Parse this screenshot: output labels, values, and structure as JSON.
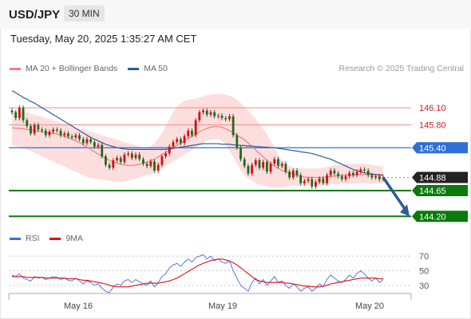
{
  "header": {
    "symbol": "USD/JPY",
    "timeframe": "30 MIN",
    "datetime": "Tuesday, May 20, 2025 1:35:27 AM CET"
  },
  "legend": {
    "items": [
      {
        "label": "MA 20 + Bollinger Bands",
        "color": "#f08080"
      },
      {
        "label": "MA 50",
        "color": "#2d5a9a"
      }
    ],
    "copyright": "Research © 2025 Trading Central"
  },
  "rsi_legend": {
    "items": [
      {
        "label": "RSI",
        "color": "#4169e1"
      },
      {
        "label": "9MA",
        "color": "#dd1111"
      }
    ]
  },
  "chart_data": [
    {
      "type": "line",
      "title": "",
      "x_tick_labels": [
        "May 16",
        "May 19",
        "May 20"
      ],
      "ylim": [
        144.05,
        146.45
      ],
      "levels": [
        {
          "value": 146.1,
          "label": "146.10",
          "style": "resistance-thin",
          "color": "#cc2222"
        },
        {
          "value": 145.8,
          "label": "145.80",
          "style": "resistance-thin",
          "color": "#cc2222"
        },
        {
          "value": 145.4,
          "label": "145.40",
          "style": "pivot",
          "color": "#2f6fd6"
        },
        {
          "value": 144.88,
          "label": "144.88",
          "style": "last-price",
          "color": "#222222"
        },
        {
          "value": 144.65,
          "label": "144.65",
          "style": "support",
          "color": "#0a7a0a"
        },
        {
          "value": 144.2,
          "label": "144.20",
          "style": "support",
          "color": "#0a7a0a"
        }
      ],
      "arrow": {
        "from": 144.88,
        "to": 144.2,
        "color": "#2d5a9a"
      },
      "series": [
        {
          "name": "Price",
          "values": [
            146.02,
            145.92,
            146.1,
            145.88,
            145.78,
            145.65,
            145.8,
            145.72,
            145.7,
            145.62,
            145.68,
            145.72,
            145.7,
            145.62,
            145.65,
            145.6,
            145.58,
            145.62,
            145.55,
            145.48,
            145.55,
            145.5,
            145.42,
            145.45,
            145.25,
            145.1,
            145.05,
            145.18,
            145.22,
            145.15,
            145.28,
            145.3,
            145.22,
            145.28,
            145.2,
            145.12,
            145.08,
            145.16,
            145.0,
            145.1,
            145.25,
            145.3,
            145.42,
            145.5,
            145.55,
            145.48,
            145.6,
            145.7,
            145.62,
            145.88,
            146.02,
            146.05,
            145.98,
            146.02,
            145.95,
            145.96,
            145.92,
            145.9,
            145.95,
            145.62,
            145.4,
            145.2,
            145.08,
            144.95,
            145.1,
            145.18,
            145.05,
            145.15,
            144.98,
            145.12,
            145.2,
            145.08,
            145.12,
            144.98,
            144.88,
            145.0,
            144.92,
            144.78,
            144.82,
            144.85,
            144.72,
            144.8,
            144.86,
            144.78,
            144.92,
            145.0,
            144.95,
            144.9,
            144.85,
            144.9,
            144.96,
            144.92,
            144.98,
            145.02,
            145.0,
            144.92,
            144.88,
            144.9,
            144.85,
            144.88
          ]
        },
        {
          "name": "MA 50",
          "values": [
            146.4,
            146.36,
            146.32,
            146.28,
            146.25,
            146.21,
            146.18,
            146.14,
            146.1,
            146.06,
            146.02,
            145.98,
            145.94,
            145.9,
            145.86,
            145.82,
            145.78,
            145.74,
            145.7,
            145.66,
            145.62,
            145.58,
            145.55,
            145.52,
            145.49,
            145.46,
            145.44,
            145.42,
            145.4,
            145.39,
            145.38,
            145.37,
            145.37,
            145.37,
            145.37,
            145.37,
            145.37,
            145.37,
            145.37,
            145.37,
            145.37,
            145.37,
            145.38,
            145.39,
            145.4,
            145.41,
            145.42,
            145.43,
            145.44,
            145.45,
            145.46,
            145.47,
            145.47,
            145.47,
            145.47,
            145.47,
            145.46,
            145.46,
            145.46,
            145.45,
            145.45,
            145.44,
            145.44,
            145.43,
            145.43,
            145.42,
            145.42,
            145.41,
            145.41,
            145.4,
            145.4,
            145.39,
            145.38,
            145.37,
            145.36,
            145.35,
            145.34,
            145.33,
            145.32,
            145.31,
            145.3,
            145.28,
            145.26,
            145.24,
            145.22,
            145.2,
            145.17,
            145.14,
            145.11,
            145.08,
            145.05,
            145.02,
            145.0,
            144.98,
            144.96,
            144.95,
            144.94,
            144.93,
            144.92,
            144.92
          ]
        },
        {
          "name": "MA 20",
          "values": [
            145.75,
            145.74,
            145.74,
            145.73,
            145.72,
            145.71,
            145.7,
            145.69,
            145.68,
            145.67,
            145.66,
            145.65,
            145.64,
            145.62,
            145.6,
            145.58,
            145.55,
            145.52,
            145.49,
            145.45,
            145.41,
            145.37,
            145.33,
            145.29,
            145.25,
            145.22,
            145.18,
            145.15,
            145.13,
            145.11,
            145.1,
            145.09,
            145.09,
            145.1,
            145.11,
            145.13,
            145.15,
            145.17,
            145.2,
            145.24,
            145.28,
            145.32,
            145.36,
            145.4,
            145.44,
            145.48,
            145.52,
            145.56,
            145.6,
            145.64,
            145.68,
            145.71,
            145.74,
            145.76,
            145.77,
            145.77,
            145.76,
            145.73,
            145.7,
            145.66,
            145.62,
            145.58,
            145.54,
            145.48,
            145.42,
            145.36,
            145.3,
            145.24,
            145.18,
            145.12,
            145.08,
            145.04,
            145.0,
            144.98,
            144.96,
            144.94,
            144.92,
            144.9,
            144.89,
            144.88,
            144.88,
            144.88,
            144.88,
            144.88,
            144.89,
            144.9,
            144.9,
            144.91,
            144.91,
            144.92,
            144.92,
            144.92,
            144.93,
            144.93,
            144.93,
            144.93,
            144.93,
            144.93,
            144.93,
            144.93
          ]
        },
        {
          "name": "Bollinger Upper",
          "values": [
            146.05,
            146.05,
            146.04,
            146.03,
            146.02,
            146.0,
            145.98,
            145.96,
            145.94,
            145.92,
            145.9,
            145.88,
            145.86,
            145.84,
            145.82,
            145.8,
            145.78,
            145.76,
            145.74,
            145.72,
            145.7,
            145.68,
            145.66,
            145.64,
            145.62,
            145.6,
            145.58,
            145.56,
            145.54,
            145.52,
            145.5,
            145.48,
            145.46,
            145.44,
            145.42,
            145.4,
            145.4,
            145.42,
            145.48,
            145.56,
            145.66,
            145.78,
            145.9,
            146.02,
            146.12,
            146.18,
            146.22,
            146.24,
            146.25,
            146.26,
            146.28,
            146.3,
            146.32,
            146.33,
            146.34,
            146.34,
            146.34,
            146.33,
            146.31,
            146.28,
            146.24,
            146.18,
            146.12,
            146.05,
            145.98,
            145.9,
            145.82,
            145.73,
            145.63,
            145.52,
            145.4,
            145.28,
            145.18,
            145.12,
            145.08,
            145.06,
            145.05,
            145.04,
            145.04,
            145.04,
            145.04,
            145.04,
            145.04,
            145.05,
            145.06,
            145.08,
            145.09,
            145.1,
            145.11,
            145.12,
            145.12,
            145.12,
            145.12,
            145.12,
            145.12,
            145.11,
            145.1,
            145.09,
            145.08,
            145.07
          ]
        },
        {
          "name": "Bollinger Lower",
          "values": [
            145.45,
            145.43,
            145.41,
            145.39,
            145.37,
            145.34,
            145.31,
            145.28,
            145.25,
            145.22,
            145.19,
            145.16,
            145.13,
            145.1,
            145.07,
            145.04,
            145.01,
            144.98,
            144.95,
            144.92,
            144.89,
            144.87,
            144.86,
            144.85,
            144.84,
            144.83,
            144.82,
            144.81,
            144.8,
            144.8,
            144.81,
            144.82,
            144.84,
            144.86,
            144.88,
            144.9,
            144.92,
            144.94,
            144.96,
            145.0,
            145.04,
            145.08,
            145.12,
            145.16,
            145.2,
            145.24,
            145.28,
            145.32,
            145.36,
            145.4,
            145.44,
            145.48,
            145.52,
            145.54,
            145.55,
            145.55,
            145.52,
            145.45,
            145.35,
            145.24,
            145.12,
            145.0,
            144.92,
            144.86,
            144.82,
            144.78,
            144.76,
            144.74,
            144.72,
            144.71,
            144.7,
            144.7,
            144.71,
            144.72,
            144.73,
            144.73,
            144.73,
            144.74,
            144.74,
            144.74,
            144.75,
            144.75,
            144.75,
            144.75,
            144.75,
            144.76,
            144.76,
            144.76,
            144.77,
            144.77,
            144.77,
            144.77,
            144.78,
            144.78,
            144.78,
            144.78,
            144.78,
            144.78,
            144.78,
            144.78
          ]
        }
      ]
    },
    {
      "type": "line",
      "title": "",
      "ylim": [
        20,
        80
      ],
      "y_tick_labels": [
        "70",
        "50",
        "30"
      ],
      "y_ticks": [
        70,
        50,
        30
      ],
      "series": [
        {
          "name": "RSI",
          "values": [
            44,
            42,
            46,
            40,
            38,
            36,
            42,
            40,
            41,
            38,
            40,
            42,
            41,
            38,
            40,
            37,
            36,
            40,
            36,
            32,
            36,
            34,
            30,
            32,
            26,
            22,
            20,
            28,
            32,
            30,
            36,
            38,
            34,
            38,
            35,
            32,
            30,
            36,
            28,
            34,
            42,
            46,
            54,
            58,
            60,
            56,
            62,
            66,
            62,
            68,
            70,
            72,
            66,
            70,
            64,
            66,
            62,
            60,
            64,
            50,
            40,
            30,
            26,
            22,
            34,
            40,
            32,
            38,
            30,
            36,
            42,
            34,
            36,
            30,
            26,
            32,
            28,
            22,
            26,
            28,
            22,
            26,
            32,
            28,
            38,
            44,
            40,
            36,
            34,
            38,
            44,
            40,
            46,
            50,
            46,
            40,
            36,
            40,
            34,
            38
          ]
        },
        {
          "name": "9MA",
          "values": [
            42,
            42,
            42,
            42,
            41,
            41,
            41,
            41,
            41,
            40,
            40,
            40,
            40,
            40,
            40,
            39,
            39,
            39,
            38,
            37,
            37,
            36,
            35,
            34,
            33,
            32,
            30,
            29,
            28,
            28,
            28,
            28,
            29,
            30,
            31,
            32,
            33,
            33,
            33,
            33,
            34,
            35,
            36,
            38,
            40,
            43,
            46,
            49,
            52,
            55,
            58,
            60,
            62,
            64,
            65,
            66,
            66,
            65,
            63,
            61,
            58,
            54,
            50,
            46,
            42,
            38,
            36,
            35,
            34,
            34,
            34,
            34,
            34,
            33,
            33,
            32,
            31,
            30,
            29,
            29,
            28,
            28,
            28,
            29,
            30,
            32,
            33,
            34,
            35,
            36,
            37,
            38,
            39,
            40,
            40,
            40,
            40,
            40,
            39,
            39
          ]
        }
      ]
    }
  ]
}
